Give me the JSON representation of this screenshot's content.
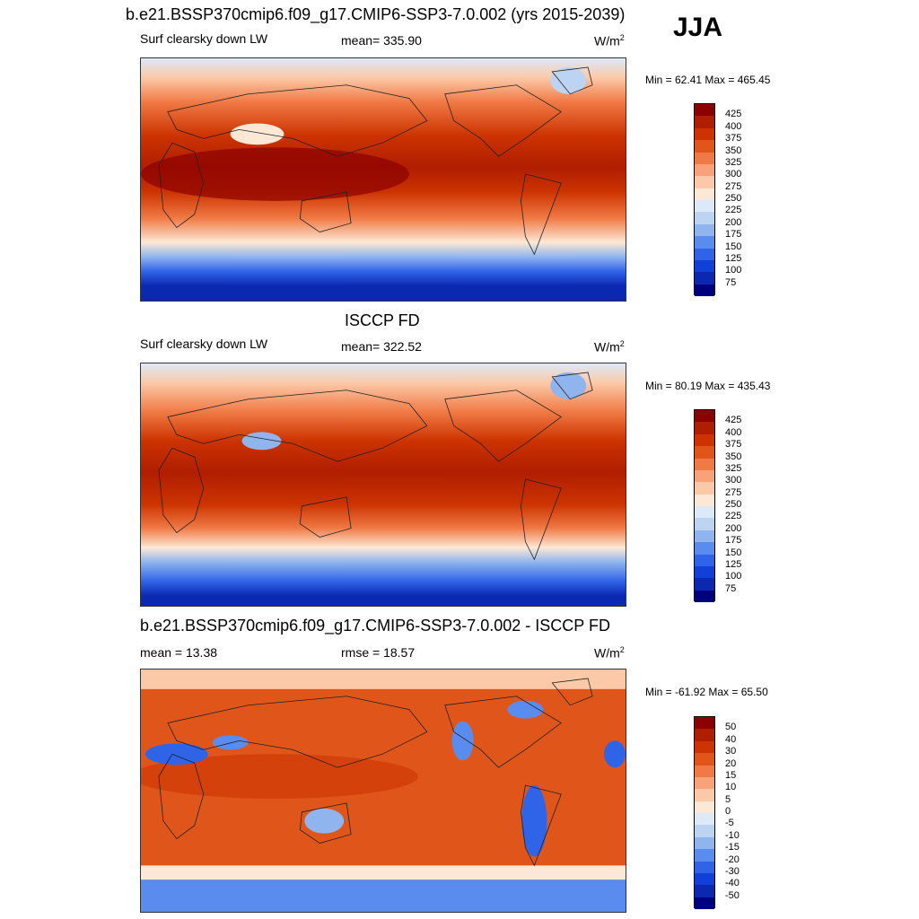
{
  "figure": {
    "season": "JJA",
    "top_title": "b.e21.BSSP370cmip6.f09_g17.CMIP6-SSP3-7.0.002 (yrs 2015-2039)",
    "units_base": "W/m",
    "units_exp": "2"
  },
  "panels": [
    {
      "title": "",
      "left_label": "Surf clearsky down LW",
      "center_label": "mean= 335.90",
      "minmax": "Min =  62.41 Max = 465.45",
      "colorbar_labels": [
        "425",
        "400",
        "375",
        "350",
        "325",
        "300",
        "275",
        "250",
        "225",
        "200",
        "175",
        "150",
        "125",
        "100",
        "75"
      ]
    },
    {
      "title": "ISCCP FD",
      "left_label": "Surf clearsky down LW",
      "center_label": "mean= 322.52",
      "minmax": "Min =  80.19 Max = 435.43",
      "colorbar_labels": [
        "425",
        "400",
        "375",
        "350",
        "325",
        "300",
        "275",
        "250",
        "225",
        "200",
        "175",
        "150",
        "125",
        "100",
        "75"
      ]
    },
    {
      "title": "b.e21.BSSP370cmip6.f09_g17.CMIP6-SSP3-7.0.002 - ISCCP FD",
      "left_label": "mean =  13.38",
      "center_label": "rmse =  18.57",
      "minmax": "Min = -61.92 Max =  65.50",
      "colorbar_labels": [
        "50",
        "40",
        "30",
        "20",
        "15",
        "10",
        "5",
        "0",
        "-5",
        "-10",
        "-15",
        "-20",
        "-30",
        "-40",
        "-50"
      ]
    }
  ],
  "colors": {
    "abs_scale": [
      "#8b0000",
      "#b01e00",
      "#cc3300",
      "#e0561a",
      "#f07a45",
      "#f9a27a",
      "#fcc9a8",
      "#fde8d6",
      "#dce9f7",
      "#bcd4f2",
      "#8fb4ee",
      "#5a8cf0",
      "#2f63e8",
      "#1040d8",
      "#0a28b0",
      "#00007e"
    ],
    "diff_scale": [
      "#8b0000",
      "#b01e00",
      "#cc3300",
      "#e0561a",
      "#f07a45",
      "#f9a27a",
      "#fcc9a8",
      "#fde8d6",
      "#dce9f7",
      "#bcd4f2",
      "#8fb4ee",
      "#5a8cf0",
      "#2f63e8",
      "#1040d8",
      "#0a28b0",
      "#00007e"
    ]
  }
}
